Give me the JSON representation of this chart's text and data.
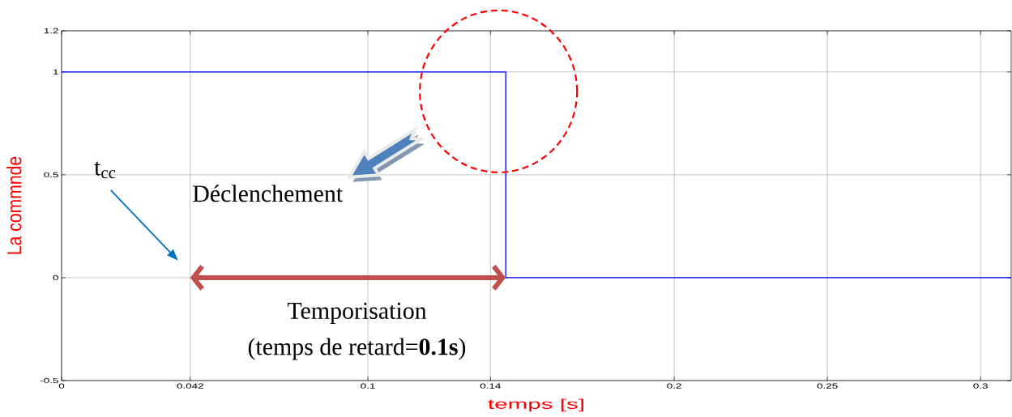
{
  "chart_data": {
    "type": "step",
    "xlabel": "temps [s]",
    "ylabel": "La commnde",
    "x": [
      0,
      0.145,
      0.31
    ],
    "values": [
      1,
      0,
      0
    ],
    "color": "#0000ff",
    "xlim": [
      0,
      0.31
    ],
    "ylim": [
      -0.5,
      1.2
    ],
    "xticks": [
      0,
      0.042,
      0.1,
      0.14,
      0.2,
      0.25,
      0.3
    ],
    "yticks": [
      -0.5,
      0,
      0.5,
      1,
      1.2
    ],
    "grid": true,
    "annotations": [
      "t$_{cc}$",
      "Déclenchement",
      "Temporisation",
      "(temps de retard=**0.1s**)"
    ]
  }
}
